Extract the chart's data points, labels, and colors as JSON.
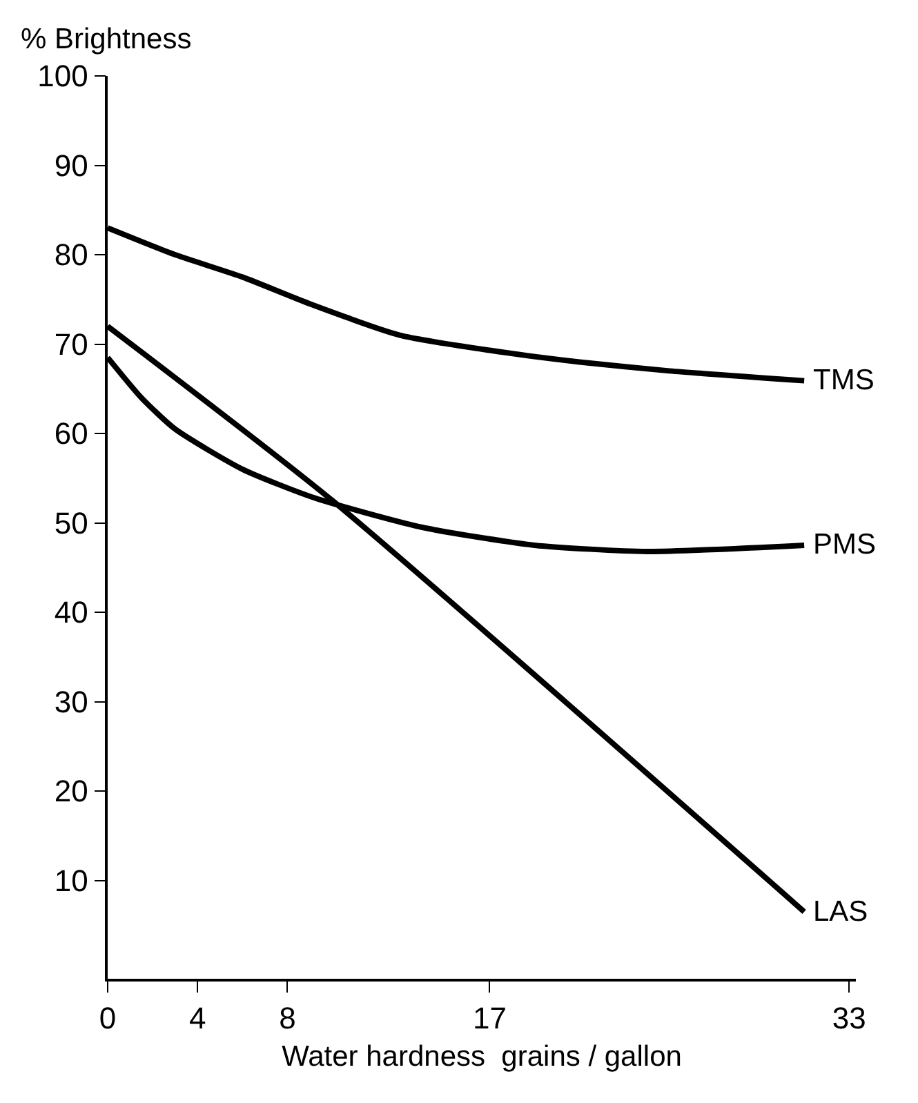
{
  "chart_data": {
    "type": "line",
    "ylabel": "% Brightness",
    "xlabel": "Water hardness  grains / gallon",
    "xlim": [
      0,
      33.3
    ],
    "xticks": [
      0,
      4,
      8,
      17,
      33
    ],
    "ylim": [
      -1,
      100
    ],
    "yticks": [
      10,
      20,
      30,
      40,
      50,
      60,
      70,
      80,
      90,
      100
    ],
    "legend": false,
    "marker": "none",
    "line_style": "solid",
    "series": [
      {
        "name": "TMS",
        "color": "#000000",
        "x": [
          0,
          3,
          6,
          9,
          13,
          17,
          21,
          25,
          31
        ],
        "values": [
          83,
          80,
          77.5,
          74.5,
          71,
          69.3,
          68,
          67,
          65.9
        ]
      },
      {
        "name": "PMS",
        "color": "#000000",
        "x": [
          0,
          1.5,
          3,
          6,
          9.2,
          14,
          19,
          24,
          31
        ],
        "values": [
          68.5,
          64,
          60.5,
          56,
          52.8,
          49.5,
          47.5,
          46.8,
          47.5
        ]
      },
      {
        "name": "LAS",
        "color": "#000000",
        "x": [
          0,
          10,
          31
        ],
        "values": [
          72,
          52.5,
          6.5
        ]
      }
    ]
  }
}
